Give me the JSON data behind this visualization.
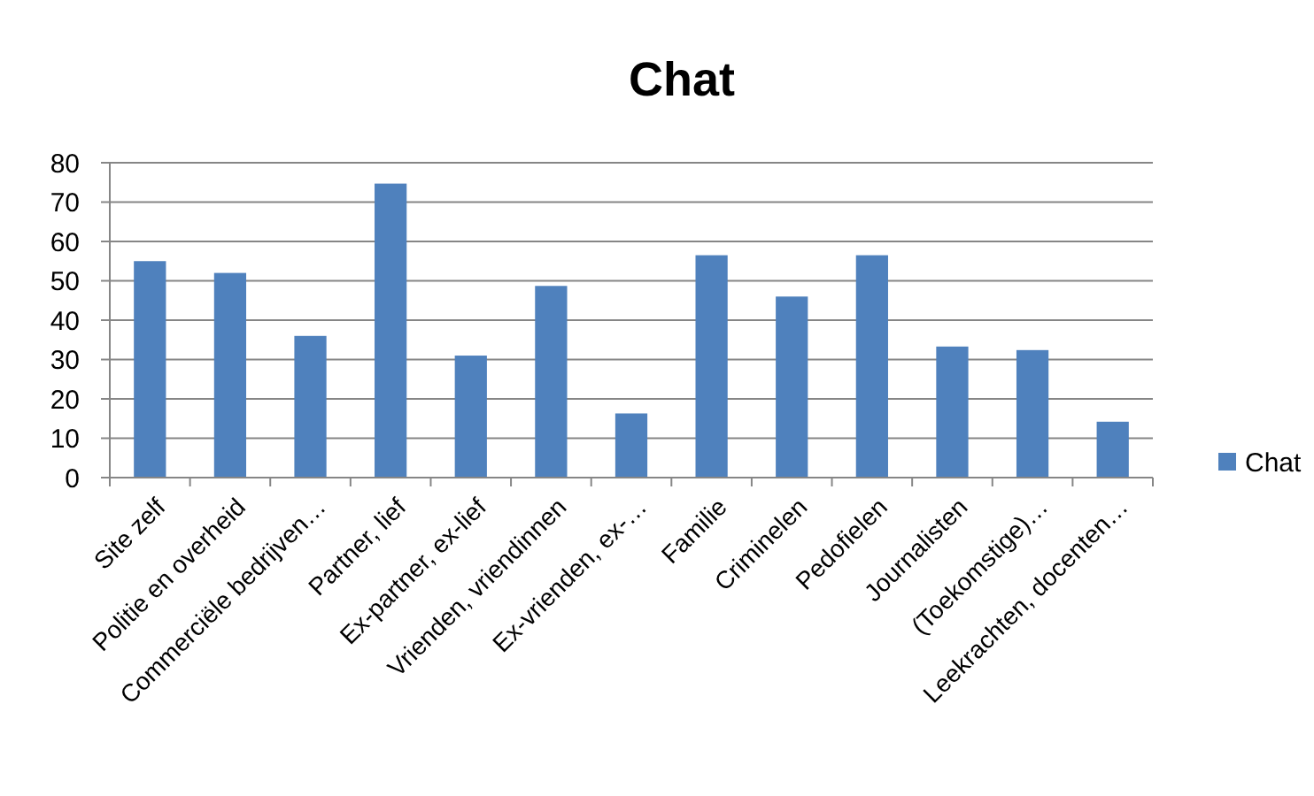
{
  "chart_data": {
    "type": "bar",
    "title": "Chat",
    "categories": [
      "Site zelf",
      "Politie en overheid",
      "Commerciële bedrijven…",
      "Partner, lief",
      "Ex-partner, ex-lief",
      "Vrienden, vriendinnen",
      "Ex-vrienden, ex-…",
      "Familie",
      "Criminelen",
      "Pedofielen",
      "Journalisten",
      "(Toekomstige)…",
      "Leekrachten, docenten…"
    ],
    "series": [
      {
        "name": "Chat",
        "color": "#4f81bd",
        "values": [
          55,
          52,
          36,
          74.7,
          31,
          48.7,
          16.3,
          56.5,
          46,
          56.5,
          33.3,
          32.4,
          14.2
        ]
      }
    ],
    "ylim": [
      0,
      80
    ],
    "yticks": [
      0,
      10,
      20,
      30,
      40,
      50,
      60,
      70,
      80
    ],
    "grid": "y",
    "legend": "right"
  }
}
